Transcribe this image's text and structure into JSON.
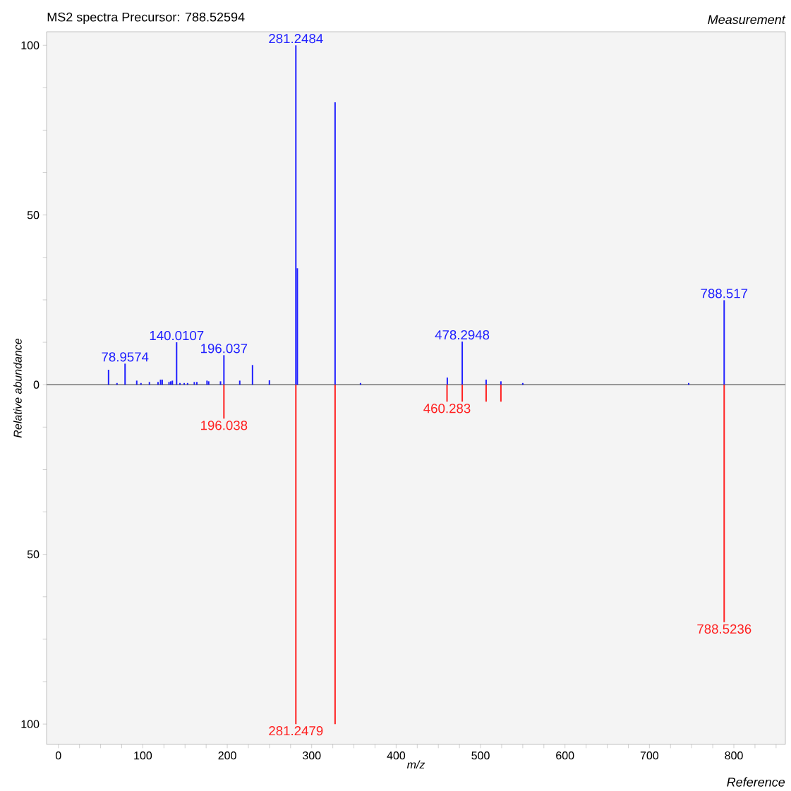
{
  "chart_data": {
    "type": "bar",
    "title": "MS2 spectra Precursor: 788.52594",
    "xlabel": "m/z",
    "ylabel": "Relative abundance",
    "xlim": [
      -14,
      861
    ],
    "ylim": [
      -106,
      104
    ],
    "xticks": [
      0,
      {
        "value": 25,
        "label": null
      },
      {
        "value": 50,
        "label": null
      },
      {
        "value": 75,
        "label": null
      },
      100,
      {
        "value": 125,
        "label": null
      },
      {
        "value": 150,
        "label": null
      },
      {
        "value": 175,
        "label": null
      },
      200,
      {
        "value": 225,
        "label": null
      },
      {
        "value": 250,
        "label": null
      },
      {
        "value": 275,
        "label": null
      },
      300,
      {
        "value": 325,
        "label": null
      },
      {
        "value": 350,
        "label": null
      },
      {
        "value": 375,
        "label": null
      },
      400,
      {
        "value": 425,
        "label": null
      },
      {
        "value": 450,
        "label": null
      },
      {
        "value": 475,
        "label": null
      },
      500,
      {
        "value": 525,
        "label": null
      },
      {
        "value": 550,
        "label": null
      },
      {
        "value": 575,
        "label": null
      },
      600,
      {
        "value": 625,
        "label": null
      },
      {
        "value": 650,
        "label": null
      },
      {
        "value": 675,
        "label": null
      },
      700,
      {
        "value": 725,
        "label": null
      },
      {
        "value": 750,
        "label": null
      },
      {
        "value": 775,
        "label": null
      },
      800,
      {
        "value": 825,
        "label": null
      },
      {
        "value": 850,
        "label": null
      }
    ],
    "yticks": [
      {
        "value": -100,
        "label": "100"
      },
      {
        "value": -87.5,
        "label": null
      },
      {
        "value": -75,
        "label": null
      },
      {
        "value": -62.5,
        "label": null
      },
      {
        "value": -50,
        "label": "50"
      },
      {
        "value": -37.5,
        "label": null
      },
      {
        "value": -25,
        "label": null
      },
      {
        "value": -12.5,
        "label": null
      },
      0,
      {
        "value": 12.5,
        "label": null
      },
      {
        "value": 25,
        "label": null
      },
      {
        "value": 37.5,
        "label": null
      },
      50,
      {
        "value": 62.5,
        "label": null
      },
      {
        "value": 75,
        "label": null
      },
      {
        "value": 87.5,
        "label": null
      },
      100
    ],
    "series": [
      {
        "color": "#2020ff",
        "x": [
          59.4,
          69.4,
          78.9574,
          92.8,
          97.8,
          107.8,
          118,
          121,
          123,
          131,
          133,
          135,
          140.0107,
          144,
          149,
          153,
          161,
          164,
          176,
          178,
          192,
          196.037,
          214.8,
          229.9,
          249.9,
          281.2484,
          283,
          327.7,
          357.8,
          460.6,
          478.2948,
          506.6,
          524.1,
          550,
          746.5,
          788.517
        ],
        "values": [
          4.4,
          0.5,
          6.2,
          1.2,
          0.5,
          0.8,
          0.8,
          1.5,
          1.5,
          0.8,
          1,
          1.2,
          12.5,
          0.5,
          0.5,
          0.5,
          0.8,
          0.8,
          1.2,
          1,
          1,
          8.7,
          1.2,
          5.8,
          1.3,
          100,
          34.3,
          83.2,
          0.5,
          2.1,
          12.7,
          1.5,
          1,
          0.5,
          0.5,
          24.9
        ]
      },
      {
        "color": "#ff2020",
        "x": [
          196.038,
          281.2479,
          327.7,
          460.283,
          478.3,
          506.6,
          524.1,
          788.5236
        ],
        "values": [
          -10,
          -100,
          -100,
          -5,
          -5,
          -5,
          -5,
          -70
        ]
      }
    ],
    "ref_lines": [
      {
        "axis": "y",
        "value": 0,
        "color": "#707070"
      }
    ],
    "annotations": [
      "Measurement",
      "Reference",
      {
        "text": "78.9574",
        "x": 78.9574,
        "y": 6.2
      },
      {
        "text": "140.0107",
        "x": 140.0107,
        "y": 12.5
      },
      {
        "text": "196.037",
        "x": 196.037,
        "y": 8.7
      },
      {
        "text": "281.2484",
        "x": 281.2484,
        "y": 100
      },
      {
        "text": "478.2948",
        "x": 478.2948,
        "y": 12.7
      },
      {
        "text": "788.517",
        "x": 788.517,
        "y": 24.9
      },
      {
        "text": "196.038",
        "x": 196.038,
        "y": -10
      },
      {
        "text": "281.2479",
        "x": 281.2479,
        "y": -100
      },
      {
        "text": "460.283",
        "x": 460.283,
        "y": -5
      },
      {
        "text": "788.5236",
        "x": 788.5236,
        "y": -70
      }
    ]
  }
}
